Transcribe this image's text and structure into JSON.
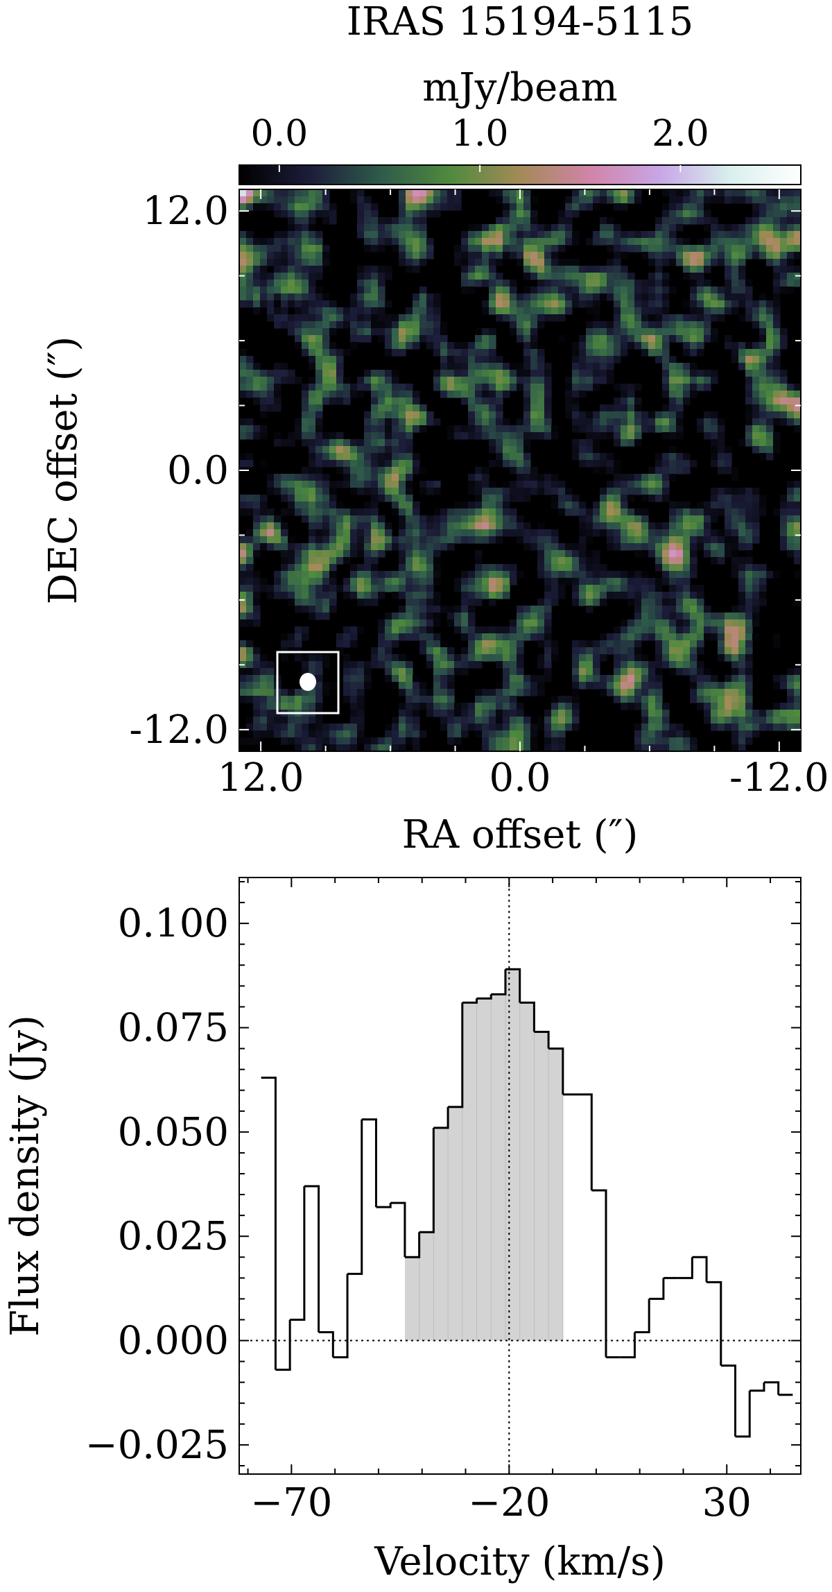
{
  "chart_data": [
    {
      "type": "heatmap",
      "title": "IRAS 15194-5115",
      "colorbar": {
        "label": "mJy/beam",
        "ticks": [
          "0.0",
          "1.0",
          "2.0"
        ],
        "tick_values": [
          0.0,
          1.0,
          2.0
        ],
        "range": [
          -0.2,
          2.6
        ],
        "colormap": [
          "#000000",
          "#1c1d3a",
          "#2e5a4a",
          "#4f8a3e",
          "#a48a57",
          "#d184a8",
          "#c8a6e6",
          "#d9f0ee",
          "#ffffff"
        ]
      },
      "xlabel": "RA offset (″)",
      "ylabel": "DEC offset (″)",
      "x_ticks": [
        "12.0",
        "0.0",
        "-12.0"
      ],
      "x_tick_values": [
        12.0,
        0.0,
        -12.0
      ],
      "y_ticks": [
        "12.0",
        "0.0",
        "-12.0"
      ],
      "y_tick_values": [
        12.0,
        0.0,
        -12.0
      ],
      "xlim": [
        13.0,
        -13.0
      ],
      "ylim": [
        -13.0,
        13.0
      ],
      "beam": {
        "ra": 9.2,
        "dec": -9.6
      },
      "content": "noise-like emission map, no significant detection"
    },
    {
      "type": "line",
      "style": "step",
      "xlabel": "Velocity (km/s)",
      "ylabel": "Flux density (Jy)",
      "x_ticks": [
        "−70",
        "−20",
        "30"
      ],
      "x_tick_values": [
        -70,
        -20,
        30
      ],
      "y_ticks": [
        "0.100",
        "0.075",
        "0.050",
        "0.025",
        "0.000",
        "−0.025"
      ],
      "y_tick_values": [
        0.1,
        0.075,
        0.05,
        0.025,
        0.0,
        -0.025
      ],
      "xlim": [
        -82,
        47
      ],
      "ylim": [
        -0.032,
        0.111
      ],
      "systemic_velocity": -20,
      "channel_width": 3.3,
      "fill_range": [
        -42.5,
        -6.8
      ],
      "x": [
        -75.3,
        -72.0,
        -68.7,
        -65.4,
        -62.1,
        -58.8,
        -55.5,
        -52.2,
        -48.9,
        -45.6,
        -42.3,
        -39.0,
        -35.7,
        -32.4,
        -29.1,
        -25.8,
        -22.5,
        -19.2,
        -15.9,
        -12.6,
        -9.3,
        -6.0,
        -2.7,
        0.6,
        3.9,
        7.2,
        10.5,
        13.8,
        17.1,
        20.4,
        23.7,
        27.0,
        30.3,
        33.6,
        36.9,
        40.2,
        43.5
      ],
      "y": [
        0.063,
        -0.007,
        0.005,
        0.037,
        0.002,
        -0.004,
        0.016,
        0.053,
        0.032,
        0.033,
        0.02,
        0.026,
        0.051,
        0.056,
        0.081,
        0.082,
        0.083,
        0.089,
        0.081,
        0.074,
        0.07,
        0.059,
        0.059,
        0.036,
        -0.004,
        -0.004,
        0.002,
        0.01,
        0.015,
        0.015,
        0.02,
        0.014,
        -0.006,
        -0.023,
        -0.012,
        -0.01,
        -0.013
      ]
    }
  ]
}
